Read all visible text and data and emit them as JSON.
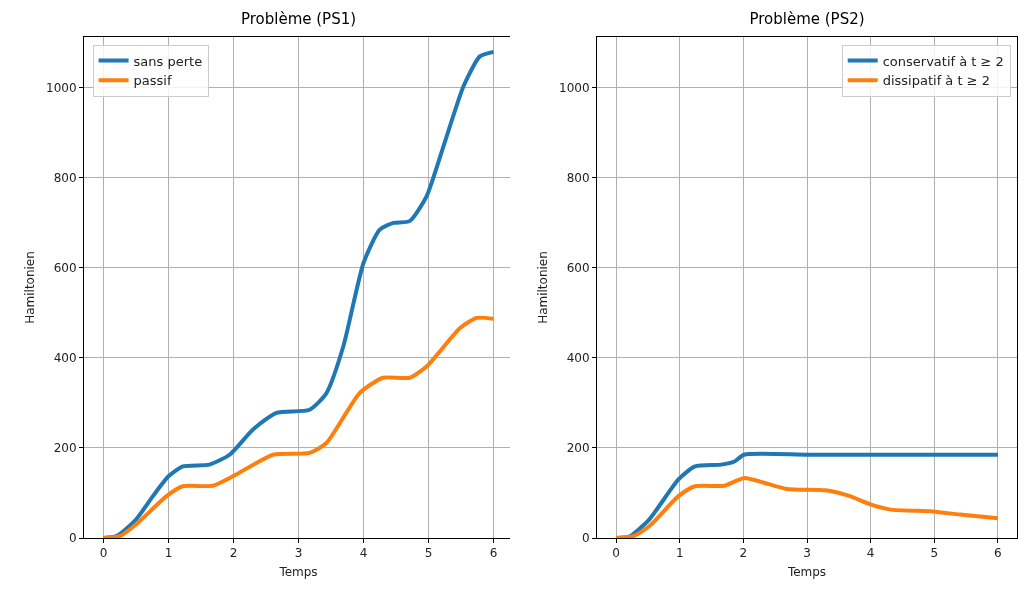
{
  "chart_data": [
    {
      "type": "line",
      "title": "Problème (PS1)",
      "xlabel": "Temps",
      "ylabel": "Hamiltonien",
      "xlim": [
        -0.3,
        6.3
      ],
      "ylim": [
        0,
        1113
      ],
      "xticks": [
        0,
        1,
        2,
        3,
        4,
        5,
        6
      ],
      "yticks": [
        0,
        200,
        400,
        600,
        800,
        1000
      ],
      "grid": true,
      "legend": "top left",
      "series": [
        {
          "name": "sans perte",
          "color": "#1f77b4",
          "x": [
            0,
            0.2,
            0.5,
            0.76,
            1.0,
            1.22,
            1.63,
            1.94,
            2.3,
            2.66,
            3.17,
            3.43,
            3.69,
            4.0,
            4.25,
            4.46,
            4.71,
            4.97,
            5.23,
            5.54,
            5.79,
            6.0
          ],
          "values": [
            0,
            4,
            41,
            93,
            137,
            159,
            163,
            185,
            241,
            278,
            285,
            322,
            426,
            611,
            685,
            700,
            704,
            759,
            870,
            1004,
            1070,
            1080
          ]
        },
        {
          "name": "passif",
          "color": "#ff7f0e",
          "x": [
            0,
            0.25,
            0.5,
            0.97,
            1.22,
            1.68,
            1.99,
            2.61,
            3.17,
            3.43,
            3.94,
            4.3,
            4.71,
            4.97,
            5.49,
            5.74,
            6.0
          ],
          "values": [
            0,
            4,
            30,
            93,
            115,
            116,
            137,
            185,
            189,
            211,
            322,
            356,
            356,
            381,
            467,
            489,
            487
          ]
        }
      ]
    },
    {
      "type": "line",
      "title": "Problème (PS2)",
      "xlabel": "Temps",
      "ylabel": "Hamiltonien",
      "xlim": [
        -0.3,
        6.3
      ],
      "ylim": [
        0,
        1113
      ],
      "xticks": [
        0,
        1,
        2,
        3,
        4,
        5,
        6
      ],
      "yticks": [
        0,
        200,
        400,
        600,
        800,
        1000
      ],
      "grid": true,
      "legend": "top right",
      "series": [
        {
          "name": "conservatif à t ≥ 2",
          "color": "#1f77b4",
          "x": [
            0,
            0.22,
            0.52,
            0.98,
            1.24,
            1.65,
            1.86,
            2.01,
            3,
            4,
            5,
            6
          ],
          "values": [
            0,
            4,
            41,
            130,
            159,
            163,
            170,
            185,
            185,
            185,
            185,
            185
          ]
        },
        {
          "name": "dissipatif à t ≥ 2",
          "color": "#ff7f0e",
          "x": [
            0,
            0.27,
            0.52,
            0.98,
            1.24,
            1.7,
            2.01,
            2.68,
            3.29,
            3.65,
            4.01,
            4.32,
            4.98,
            5.4,
            6.0
          ],
          "values": [
            0,
            4,
            26,
            93,
            115,
            116,
            133,
            109,
            106,
            94,
            74,
            63,
            59,
            52,
            44
          ]
        }
      ]
    }
  ]
}
